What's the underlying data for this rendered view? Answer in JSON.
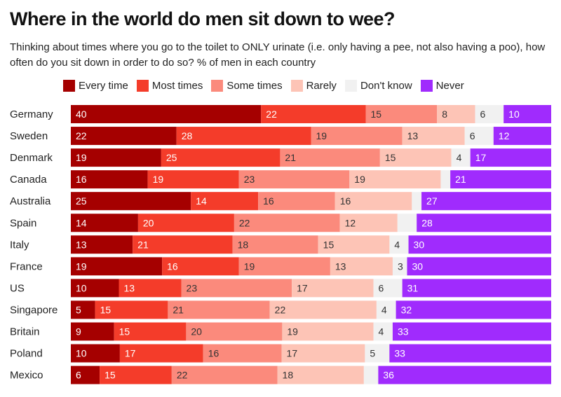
{
  "chart_data": {
    "type": "bar",
    "orientation": "horizontal-stacked-100",
    "title": "Where in the world do men sit down to wee?",
    "subtitle": "Thinking about times where you go to the toilet to ONLY urinate (i.e. only having a pee, not also having a poo), how often do you sit down in order to do so? % of men in each country",
    "legend_position": "top",
    "categories": [
      "Germany",
      "Sweden",
      "Denmark",
      "Canada",
      "Australia",
      "Spain",
      "Italy",
      "France",
      "US",
      "Singapore",
      "Britain",
      "Poland",
      "Mexico"
    ],
    "series": [
      {
        "name": "Every time",
        "color": "#a50000",
        "text_color": "#ffffff",
        "values": [
          40,
          22,
          19,
          16,
          25,
          14,
          13,
          19,
          10,
          5,
          9,
          10,
          6
        ]
      },
      {
        "name": "Most times",
        "color": "#f43c2a",
        "text_color": "#ffffff",
        "values": [
          22,
          28,
          25,
          19,
          14,
          20,
          21,
          16,
          13,
          15,
          15,
          17,
          15
        ]
      },
      {
        "name": "Some times",
        "color": "#fb8a7c",
        "text_color": "#333333",
        "values": [
          15,
          19,
          21,
          23,
          16,
          22,
          18,
          19,
          23,
          21,
          20,
          16,
          22
        ]
      },
      {
        "name": "Rarely",
        "color": "#fdc4b6",
        "text_color": "#333333",
        "values": [
          8,
          13,
          15,
          19,
          16,
          12,
          15,
          13,
          17,
          22,
          19,
          17,
          18
        ]
      },
      {
        "name": "Don't know",
        "color": "#f1f1f1",
        "text_color": "#333333",
        "values": [
          6,
          6,
          4,
          2,
          2,
          4,
          4,
          3,
          6,
          4,
          4,
          5,
          3
        ],
        "labeled": [
          true,
          true,
          true,
          false,
          false,
          false,
          true,
          true,
          true,
          true,
          true,
          true,
          false
        ]
      },
      {
        "name": "Never",
        "color": "#a02bfd",
        "text_color": "#ffffff",
        "values": [
          10,
          12,
          17,
          21,
          27,
          28,
          30,
          30,
          31,
          32,
          33,
          33,
          36
        ]
      }
    ],
    "xlim": [
      0,
      100
    ],
    "grid": false
  }
}
